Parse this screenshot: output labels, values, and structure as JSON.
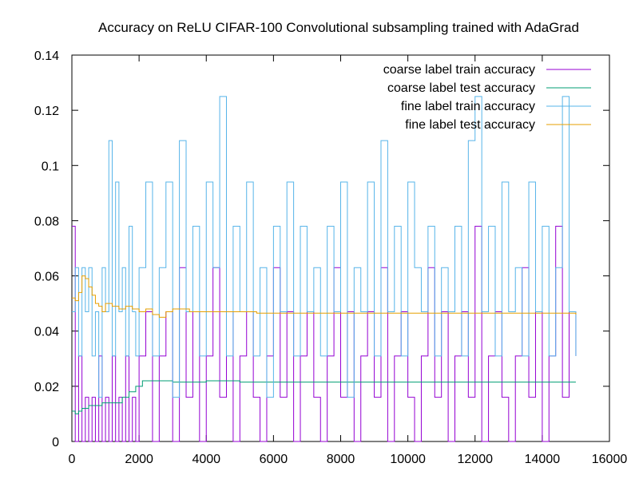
{
  "chart_data": {
    "type": "line",
    "title": "Accuracy on ReLU CIFAR-100 Convolutional subsampling trained with AdaGrad",
    "xlabel": "",
    "ylabel": "",
    "xlim": [
      0,
      16000
    ],
    "ylim": [
      0,
      0.14
    ],
    "x_ticks": [
      0,
      2000,
      4000,
      6000,
      8000,
      10000,
      12000,
      14000,
      16000
    ],
    "x_tick_labels": [
      "0",
      "2000",
      "4000",
      "6000",
      "8000",
      "10000",
      "12000",
      "14000",
      "16000"
    ],
    "y_ticks": [
      0,
      0.02,
      0.04,
      0.06,
      0.08,
      0.1,
      0.12,
      0.14
    ],
    "y_tick_labels": [
      "0",
      "0.02",
      "0.04",
      "0.06",
      "0.08",
      "0.1",
      "0.12",
      "0.14"
    ],
    "grid": false,
    "legend_position": "top-right",
    "series": [
      {
        "name": "coarse label train accuracy",
        "color": "#9400d3",
        "x": [
          0,
          100,
          200,
          300,
          400,
          500,
          600,
          700,
          800,
          900,
          1000,
          1100,
          1200,
          1300,
          1400,
          1500,
          1600,
          1700,
          1800,
          1900,
          2000,
          2200,
          2400,
          2600,
          2800,
          3000,
          3200,
          3400,
          3600,
          3800,
          4000,
          4200,
          4400,
          4600,
          4800,
          5000,
          5200,
          5400,
          5600,
          5800,
          6000,
          6200,
          6400,
          6600,
          6800,
          7000,
          7200,
          7400,
          7600,
          7800,
          8000,
          8200,
          8400,
          8600,
          8800,
          9000,
          9200,
          9400,
          9600,
          9800,
          10000,
          10200,
          10400,
          10600,
          10800,
          11000,
          11200,
          11400,
          11600,
          11800,
          12000,
          12200,
          12400,
          12600,
          12800,
          13000,
          13200,
          13400,
          13600,
          13800,
          14000,
          14200,
          14400,
          14600,
          14800,
          15000
        ],
        "y": [
          0.078,
          0.0,
          0.031,
          0.0,
          0.016,
          0.0,
          0.016,
          0.0,
          0.031,
          0.0,
          0.016,
          0.0,
          0.031,
          0.0,
          0.016,
          0.0,
          0.031,
          0.0,
          0.016,
          0.0,
          0.031,
          0.047,
          0.0,
          0.031,
          0.047,
          0.0,
          0.063,
          0.016,
          0.047,
          0.0,
          0.031,
          0.063,
          0.016,
          0.047,
          0.0,
          0.031,
          0.047,
          0.016,
          0.0,
          0.031,
          0.063,
          0.016,
          0.047,
          0.0,
          0.031,
          0.047,
          0.016,
          0.0,
          0.031,
          0.063,
          0.016,
          0.047,
          0.0,
          0.031,
          0.047,
          0.016,
          0.063,
          0.0,
          0.031,
          0.047,
          0.016,
          0.0,
          0.031,
          0.063,
          0.016,
          0.047,
          0.0,
          0.031,
          0.047,
          0.016,
          0.078,
          0.0,
          0.031,
          0.047,
          0.016,
          0.0,
          0.031,
          0.063,
          0.016,
          0.047,
          0.0,
          0.031,
          0.078,
          0.016,
          0.047,
          0.031
        ]
      },
      {
        "name": "coarse label test accuracy",
        "color": "#009e73",
        "x": [
          0,
          100,
          200,
          300,
          400,
          500,
          700,
          900,
          1100,
          1300,
          1500,
          1700,
          1900,
          2100,
          2300,
          2500,
          3000,
          3500,
          4000,
          5000,
          6000,
          7000,
          8000,
          9000,
          10000,
          11000,
          12000,
          13000,
          14000,
          15000
        ],
        "y": [
          0.011,
          0.01,
          0.011,
          0.012,
          0.012,
          0.013,
          0.013,
          0.014,
          0.014,
          0.014,
          0.016,
          0.018,
          0.02,
          0.022,
          0.022,
          0.022,
          0.0215,
          0.0215,
          0.022,
          0.0215,
          0.0215,
          0.0215,
          0.0215,
          0.0215,
          0.0215,
          0.0215,
          0.0215,
          0.0215,
          0.0215,
          0.0215
        ]
      },
      {
        "name": "fine label train accuracy",
        "color": "#56b4e9",
        "x": [
          0,
          100,
          200,
          300,
          400,
          500,
          600,
          700,
          800,
          900,
          1000,
          1100,
          1200,
          1300,
          1400,
          1500,
          1600,
          1700,
          1800,
          1900,
          2000,
          2200,
          2400,
          2600,
          2800,
          3000,
          3200,
          3400,
          3600,
          3800,
          4000,
          4200,
          4400,
          4600,
          4800,
          5000,
          5200,
          5400,
          5600,
          5800,
          6000,
          6200,
          6400,
          6600,
          6800,
          7000,
          7200,
          7400,
          7600,
          7800,
          8000,
          8200,
          8400,
          8600,
          8800,
          9000,
          9200,
          9400,
          9600,
          9800,
          10000,
          10200,
          10400,
          10600,
          10800,
          11000,
          11200,
          11400,
          11600,
          11800,
          12000,
          12200,
          12400,
          12600,
          12800,
          13000,
          13200,
          13400,
          13600,
          13800,
          14000,
          14200,
          14400,
          14600,
          14800,
          15000
        ],
        "y": [
          0.047,
          0.063,
          0.031,
          0.063,
          0.047,
          0.063,
          0.031,
          0.047,
          0.016,
          0.063,
          0.047,
          0.109,
          0.031,
          0.094,
          0.047,
          0.063,
          0.031,
          0.078,
          0.047,
          0.031,
          0.063,
          0.094,
          0.031,
          0.063,
          0.094,
          0.016,
          0.109,
          0.047,
          0.078,
          0.031,
          0.094,
          0.063,
          0.125,
          0.031,
          0.078,
          0.047,
          0.094,
          0.031,
          0.063,
          0.016,
          0.078,
          0.047,
          0.094,
          0.031,
          0.078,
          0.047,
          0.063,
          0.031,
          0.078,
          0.047,
          0.094,
          0.016,
          0.063,
          0.047,
          0.094,
          0.031,
          0.109,
          0.047,
          0.078,
          0.031,
          0.094,
          0.063,
          0.047,
          0.078,
          0.031,
          0.063,
          0.047,
          0.078,
          0.031,
          0.109,
          0.125,
          0.047,
          0.078,
          0.031,
          0.094,
          0.047,
          0.063,
          0.031,
          0.094,
          0.047,
          0.078,
          0.031,
          0.063,
          0.125,
          0.047,
          0.031
        ]
      },
      {
        "name": "fine label test accuracy",
        "color": "#e69f00",
        "x": [
          0,
          100,
          200,
          300,
          400,
          500,
          600,
          700,
          800,
          900,
          1000,
          1200,
          1400,
          1600,
          1800,
          2000,
          2200,
          2400,
          2600,
          2800,
          3000,
          3500,
          4000,
          4500,
          5000,
          5500,
          6000,
          7000,
          8000,
          9000,
          10000,
          11000,
          12000,
          13000,
          14000,
          15000
        ],
        "y": [
          0.052,
          0.051,
          0.054,
          0.06,
          0.059,
          0.056,
          0.053,
          0.05,
          0.049,
          0.047,
          0.05,
          0.049,
          0.048,
          0.049,
          0.048,
          0.047,
          0.048,
          0.046,
          0.045,
          0.047,
          0.048,
          0.047,
          0.047,
          0.047,
          0.047,
          0.0465,
          0.0465,
          0.0465,
          0.0465,
          0.0465,
          0.0465,
          0.0465,
          0.0465,
          0.0465,
          0.0465,
          0.046
        ]
      }
    ]
  }
}
